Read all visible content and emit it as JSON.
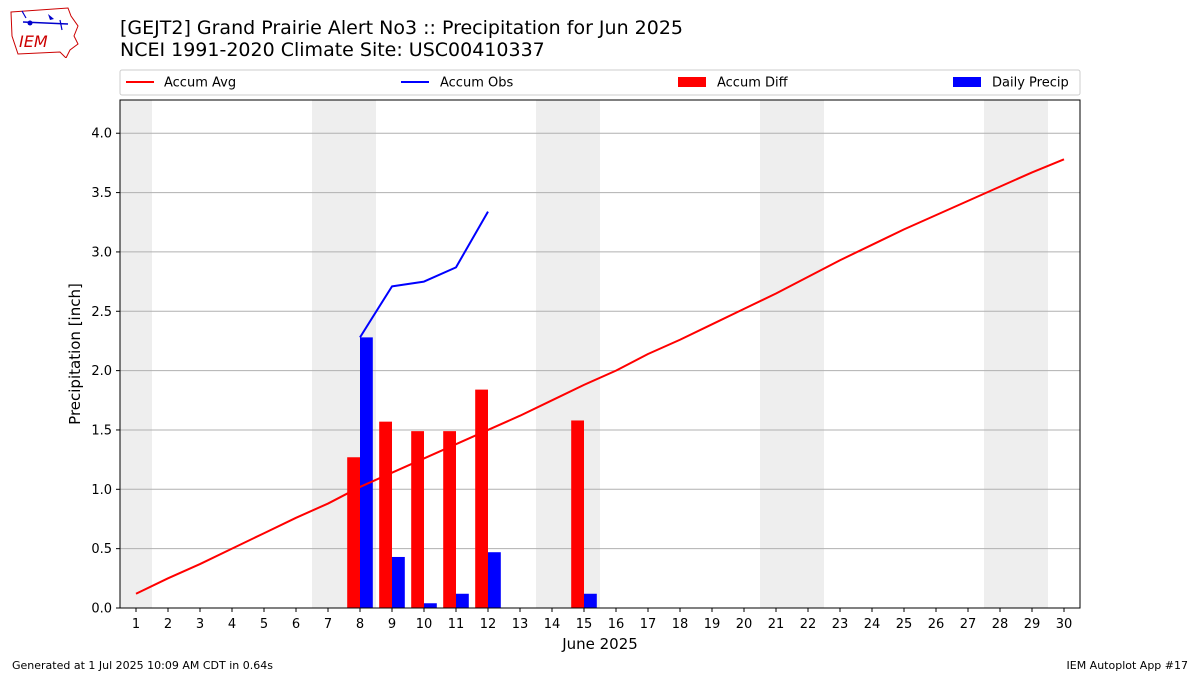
{
  "header": {
    "title_line1": "[GEJT2] Grand Prairie Alert No3 :: Precipitation for Jun 2025",
    "title_line2": "NCEI 1991-2020 Climate Site: USC00410337",
    "logo_text": "IEM"
  },
  "footer": {
    "generated": "Generated at 1 Jul 2025 10:09 AM CDT in 0.64s",
    "app": "IEM Autoplot App #17"
  },
  "colors": {
    "avg": "#ff0000",
    "obs": "#0000ff",
    "diff": "#ff0000",
    "daily": "#0000ff",
    "weekend": "#eeeeee",
    "grid": "#b0b0b0"
  },
  "chart_data": {
    "type": "bar",
    "xlabel": "June 2025",
    "ylabel": "Precipitation [inch]",
    "xlim": [
      0.5,
      30.5
    ],
    "ylim": [
      0,
      4.28
    ],
    "yticks": [
      0.0,
      0.5,
      1.0,
      1.5,
      2.0,
      2.5,
      3.0,
      3.5,
      4.0
    ],
    "grid": "horizontal",
    "legend_position": "top",
    "days": [
      1,
      2,
      3,
      4,
      5,
      6,
      7,
      8,
      9,
      10,
      11,
      12,
      13,
      14,
      15,
      16,
      17,
      18,
      19,
      20,
      21,
      22,
      23,
      24,
      25,
      26,
      27,
      28,
      29,
      30
    ],
    "weekend_bands": [
      [
        1,
        1
      ],
      [
        7,
        8
      ],
      [
        14,
        15
      ],
      [
        21,
        22
      ],
      [
        28,
        29
      ]
    ],
    "series": [
      {
        "name": "Accum Avg",
        "kind": "line",
        "color": "#ff0000",
        "x": [
          1,
          2,
          3,
          4,
          5,
          6,
          7,
          8,
          9,
          10,
          11,
          12,
          13,
          14,
          15,
          16,
          17,
          18,
          19,
          20,
          21,
          22,
          23,
          24,
          25,
          26,
          27,
          28,
          29,
          30
        ],
        "values": [
          0.12,
          0.25,
          0.37,
          0.5,
          0.63,
          0.76,
          0.88,
          1.02,
          1.14,
          1.26,
          1.38,
          1.5,
          1.62,
          1.75,
          1.88,
          2.0,
          2.14,
          2.26,
          2.39,
          2.52,
          2.65,
          2.79,
          2.93,
          3.06,
          3.19,
          3.31,
          3.43,
          3.55,
          3.67,
          3.78
        ]
      },
      {
        "name": "Accum Obs",
        "kind": "line",
        "color": "#0000ff",
        "x": [
          8,
          9,
          10,
          11,
          12
        ],
        "values": [
          2.28,
          2.71,
          2.75,
          2.87,
          3.34
        ]
      },
      {
        "name": "Accum Diff",
        "kind": "bar",
        "color": "#ff0000",
        "x": [
          8,
          9,
          10,
          11,
          12,
          15
        ],
        "values": [
          1.27,
          1.57,
          1.49,
          1.49,
          1.84,
          1.58
        ]
      },
      {
        "name": "Daily Precip",
        "kind": "bar",
        "color": "#0000ff",
        "x": [
          8,
          9,
          10,
          11,
          12,
          15
        ],
        "values": [
          2.28,
          0.43,
          0.04,
          0.12,
          0.47,
          0.12
        ]
      }
    ]
  }
}
